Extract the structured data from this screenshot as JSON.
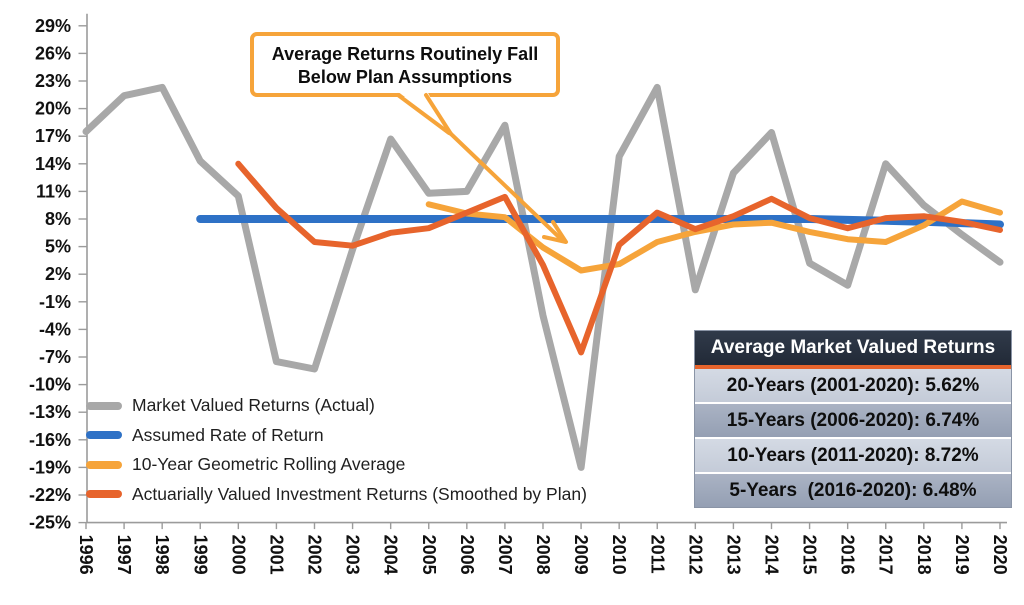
{
  "chart_data": {
    "type": "line",
    "title": "",
    "x": [
      1996,
      1997,
      1998,
      1999,
      2000,
      2001,
      2002,
      2003,
      2004,
      2005,
      2006,
      2007,
      2008,
      2009,
      2010,
      2011,
      2012,
      2013,
      2014,
      2015,
      2016,
      2017,
      2018,
      2019,
      2020
    ],
    "ylim": [
      -25,
      29
    ],
    "ytick_step": 3,
    "ytick_suffix": "%",
    "grid": false,
    "legend_position": "inside-lower-left",
    "series": [
      {
        "name": "Market Valued Returns (Actual)",
        "color": "#A8A8A8",
        "width": 7,
        "values": [
          17.5,
          21.4,
          22.3,
          14.3,
          10.5,
          -7.5,
          -8.3,
          4.7,
          16.7,
          10.8,
          11,
          18.2,
          -2.5,
          -19,
          14.8,
          22.3,
          0.3,
          13,
          17.4,
          3.2,
          0.8,
          14,
          9.5,
          6.3,
          3.3
        ]
      },
      {
        "name": "Assumed Rate of Return",
        "color": "#2E71C6",
        "width": 8,
        "values": [
          null,
          null,
          null,
          8,
          8,
          8,
          8,
          8,
          8,
          8,
          8,
          8,
          8,
          8,
          8,
          8,
          8,
          8,
          8,
          8,
          7.9,
          7.8,
          7.7,
          7.55,
          7.4
        ]
      },
      {
        "name": "10-Year Geometric Rolling Average",
        "color": "#F6A43A",
        "width": 6,
        "values": [
          null,
          null,
          null,
          null,
          null,
          null,
          null,
          null,
          null,
          9.6,
          8.6,
          8.2,
          4.9,
          2.4,
          3.1,
          5.5,
          6.6,
          7.4,
          7.6,
          6.6,
          5.8,
          5.5,
          7.3,
          9.9,
          8.7
        ]
      },
      {
        "name": "Actuarially Valued Investment Returns (Smoothed by Plan)",
        "color": "#E7642C",
        "width": 6,
        "values": [
          null,
          null,
          null,
          null,
          14,
          9.2,
          5.5,
          5.1,
          6.5,
          7,
          8.7,
          10.4,
          3,
          -6.5,
          5.2,
          8.7,
          6.9,
          8.3,
          10.2,
          8.1,
          7,
          8.1,
          8.3,
          7.7,
          6.8
        ]
      }
    ]
  },
  "annotation": {
    "line1": "Average Returns Routinely Fall",
    "line2": "Below Plan Assumptions",
    "border_color": "#F6A43A"
  },
  "summary_table": {
    "title": "Average Market Valued Returns",
    "header_bg": "#28313F",
    "accent_color": "#E7642C",
    "row_light": "#CCD3DF",
    "row_dark": "#9FA9BB",
    "rows": [
      "20-Years (2001-2020): 5.62%",
      "15-Years (2006-2020): 6.74%",
      "10-Years (2011-2020): 8.72%",
      "5-Years  (2016-2020): 6.48%"
    ]
  }
}
